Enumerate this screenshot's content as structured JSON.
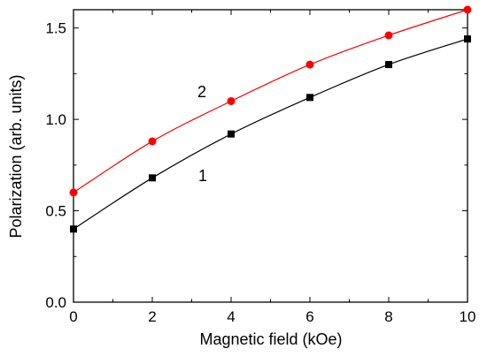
{
  "chart_data": {
    "type": "line",
    "xlabel": "Magnetic field (kOe)",
    "ylabel": "Polarization (arb. units)",
    "xlim": [
      0,
      10
    ],
    "ylim": [
      0.0,
      1.6
    ],
    "xticks": [
      "0",
      "2",
      "4",
      "6",
      "8",
      "10"
    ],
    "yticks": [
      "0.0",
      "0.5",
      "1.0",
      "1.5"
    ],
    "grid": false,
    "series": [
      {
        "name": "1",
        "marker": "square",
        "color": "#000000",
        "x": [
          0,
          2,
          4,
          6,
          8,
          10
        ],
        "y": [
          0.4,
          0.68,
          0.92,
          1.12,
          1.3,
          1.44
        ]
      },
      {
        "name": "2",
        "marker": "circle",
        "color": "#ff0000",
        "x": [
          0,
          2,
          4,
          6,
          8,
          10
        ],
        "y": [
          0.6,
          0.88,
          1.1,
          1.3,
          1.46,
          1.6
        ]
      }
    ]
  }
}
